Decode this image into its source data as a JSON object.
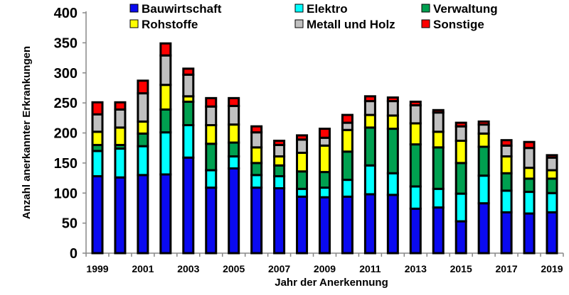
{
  "chart_data": {
    "type": "bar",
    "stacked": true,
    "title": "",
    "xlabel": "Jahr der Anerkennung",
    "ylabel": "Anzahl anerkannter Erkrankungen",
    "ylim": [
      0,
      400
    ],
    "yticks": [
      0,
      50,
      100,
      150,
      200,
      250,
      300,
      350,
      400
    ],
    "xtick_labels": [
      "1999",
      "2001",
      "2003",
      "2005",
      "2007",
      "2009",
      "2011",
      "2013",
      "2015",
      "2017",
      "2019"
    ],
    "categories": [
      "1999",
      "2000",
      "2001",
      "2002",
      "2003",
      "2004",
      "2005",
      "2006",
      "2007",
      "2008",
      "2009",
      "2010",
      "2011",
      "2012",
      "2013",
      "2014",
      "2015",
      "2016",
      "2017",
      "2018",
      "2019"
    ],
    "legend_position": "top",
    "series": [
      {
        "name": "Bauwirtschaft",
        "color": "#0a0af0",
        "values": [
          128,
          126,
          130,
          131,
          159,
          109,
          141,
          109,
          108,
          94,
          93,
          94,
          98,
          97,
          74,
          76,
          53,
          83,
          68,
          66,
          68
        ]
      },
      {
        "name": "Elektro",
        "color": "#00ffff",
        "values": [
          42,
          48,
          48,
          70,
          54,
          29,
          20,
          21,
          20,
          13,
          16,
          28,
          48,
          36,
          37,
          31,
          46,
          46,
          36,
          36,
          32
        ]
      },
      {
        "name": "Verwaltung",
        "color": "#00a050",
        "values": [
          10,
          6,
          21,
          38,
          39,
          44,
          23,
          20,
          18,
          29,
          26,
          47,
          63,
          74,
          70,
          69,
          51,
          48,
          29,
          22,
          24
        ]
      },
      {
        "name": "Rohstoffe",
        "color": "#ffff00",
        "values": [
          22,
          29,
          20,
          41,
          9,
          31,
          30,
          26,
          15,
          31,
          44,
          36,
          21,
          22,
          35,
          26,
          37,
          22,
          28,
          18,
          14
        ]
      },
      {
        "name": "Metall und Holz",
        "color": "#c0c0c0",
        "values": [
          29,
          30,
          47,
          49,
          36,
          31,
          31,
          25,
          19,
          22,
          13,
          12,
          23,
          24,
          30,
          32,
          24,
          15,
          18,
          33,
          21
        ]
      },
      {
        "name": "Sonstige",
        "color": "#ff0000",
        "values": [
          20,
          12,
          21,
          20,
          10,
          14,
          13,
          10,
          7,
          7,
          15,
          13,
          8,
          6,
          6,
          4,
          6,
          5,
          9,
          10,
          4
        ]
      }
    ],
    "legend_order": [
      0,
      1,
      2,
      3,
      4,
      5
    ]
  }
}
